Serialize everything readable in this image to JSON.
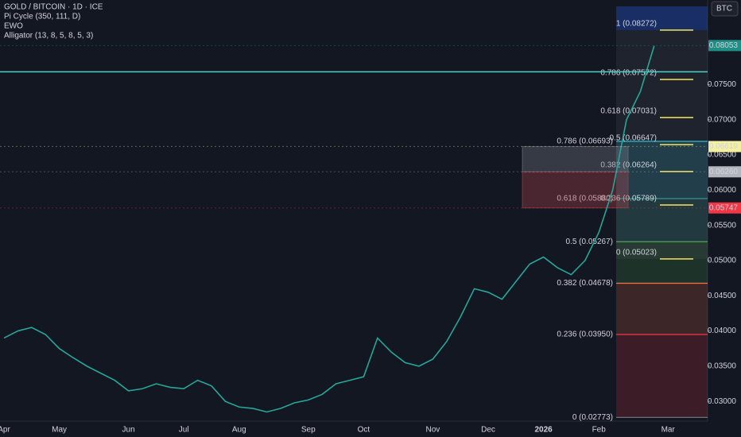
{
  "chart_data": {
    "type": "line",
    "title": "GOLD / BITCOIN · 1D · ICE",
    "indicators": [
      "Pi Cycle (350, 111, D)",
      "EWO",
      "Alligator (13, 8, 5, 8, 5, 3)"
    ],
    "currency_button": "BTC",
    "categories": [
      "Apr",
      null,
      null,
      null,
      "May",
      null,
      null,
      null,
      null,
      "Jun",
      null,
      null,
      null,
      "Jul",
      null,
      null,
      null,
      "Aug",
      null,
      null,
      null,
      null,
      "Sep",
      null,
      null,
      null,
      "Oct",
      null,
      null,
      null,
      null,
      "Nov",
      null,
      null,
      null,
      "Dec",
      null,
      null,
      null,
      "2026",
      null,
      null,
      null,
      "Feb",
      null,
      null,
      null,
      null,
      "Mar"
    ],
    "series": [
      {
        "name": "GOLD / BITCOIN",
        "color": "#26a69a",
        "values": [
          0.039,
          0.04,
          0.0405,
          0.0395,
          0.0375,
          0.0362,
          0.035,
          0.034,
          0.033,
          0.0315,
          0.0318,
          0.0325,
          0.032,
          0.0318,
          0.033,
          0.0322,
          0.03,
          0.0292,
          0.029,
          0.0285,
          0.029,
          0.0298,
          0.0302,
          0.031,
          0.0325,
          0.033,
          0.0335,
          0.039,
          0.037,
          0.0355,
          0.035,
          0.036,
          0.0385,
          0.042,
          0.046,
          0.0455,
          0.0445,
          0.047,
          0.0495,
          0.0505,
          0.049,
          0.048,
          0.05,
          0.054,
          0.06,
          0.07,
          0.074,
          0.0805,
          null
        ]
      }
    ],
    "ylim": [
      0.0272,
      0.087
    ],
    "yticks": [
      {
        "value": 0.03,
        "label": "0.03000"
      },
      {
        "value": 0.035,
        "label": "0.03500"
      },
      {
        "value": 0.04,
        "label": "0.04000"
      },
      {
        "value": 0.045,
        "label": "0.04500"
      },
      {
        "value": 0.05,
        "label": "0.05000"
      },
      {
        "value": 0.055,
        "label": "0.05500"
      },
      {
        "value": 0.06,
        "label": "0.06000"
      },
      {
        "value": 0.065,
        "label": "0.06500"
      },
      {
        "value": 0.07,
        "label": "0.07000"
      },
      {
        "value": 0.075,
        "label": "0.07500"
      }
    ],
    "grid": false,
    "hline": {
      "value": 0.0768,
      "color": "#4dd0c8"
    },
    "zones": [
      {
        "top": 0.06619,
        "bottom": 0.0626,
        "color": "#787b86"
      },
      {
        "top": 0.0626,
        "bottom": 0.05747,
        "color": "#b2434b"
      }
    ],
    "price_tags": [
      {
        "value": 0.08053,
        "label": "0.08053",
        "color": "#1f8f86"
      },
      {
        "value": 0.06619,
        "label": "0.06619",
        "color": "#f5f0a0"
      },
      {
        "value": 0.0626,
        "label": "0.06260",
        "color": "#b2b5be"
      },
      {
        "value": 0.05747,
        "label": "0.05747",
        "color": "#f23645"
      }
    ],
    "fib_main": [
      {
        "value": 0.06693,
        "label": "0.786 (0.06693)",
        "color": "#26c6da"
      },
      {
        "value": 0.0588,
        "label": "0.618 (0.05880)",
        "color": "#26a69a"
      },
      {
        "value": 0.05267,
        "label": "0.5 (0.05267)",
        "color": "#4caf50"
      },
      {
        "value": 0.04678,
        "label": "0.382 (0.04678)",
        "color": "#ff7043"
      },
      {
        "value": 0.0395,
        "label": "0.236 (0.03950)",
        "color": "#f23645"
      },
      {
        "value": 0.02773,
        "label": "0 (0.02773)",
        "color": "#787b86"
      }
    ],
    "fib_recent": [
      {
        "value": 0.08272,
        "label": "1 (0.08272)"
      },
      {
        "value": 0.07572,
        "label": "0.786 (0.07572)"
      },
      {
        "value": 0.07031,
        "label": "0.618 (0.07031)"
      },
      {
        "value": 0.06647,
        "label": "0.5 (0.06647)"
      },
      {
        "value": 0.06264,
        "label": "0.382 (0.06264)"
      },
      {
        "value": 0.05789,
        "label": "0.236 (0.05789)"
      },
      {
        "value": 0.05023,
        "label": "0 (0.05023)"
      }
    ],
    "fib_recent_color": "#f5e663"
  }
}
